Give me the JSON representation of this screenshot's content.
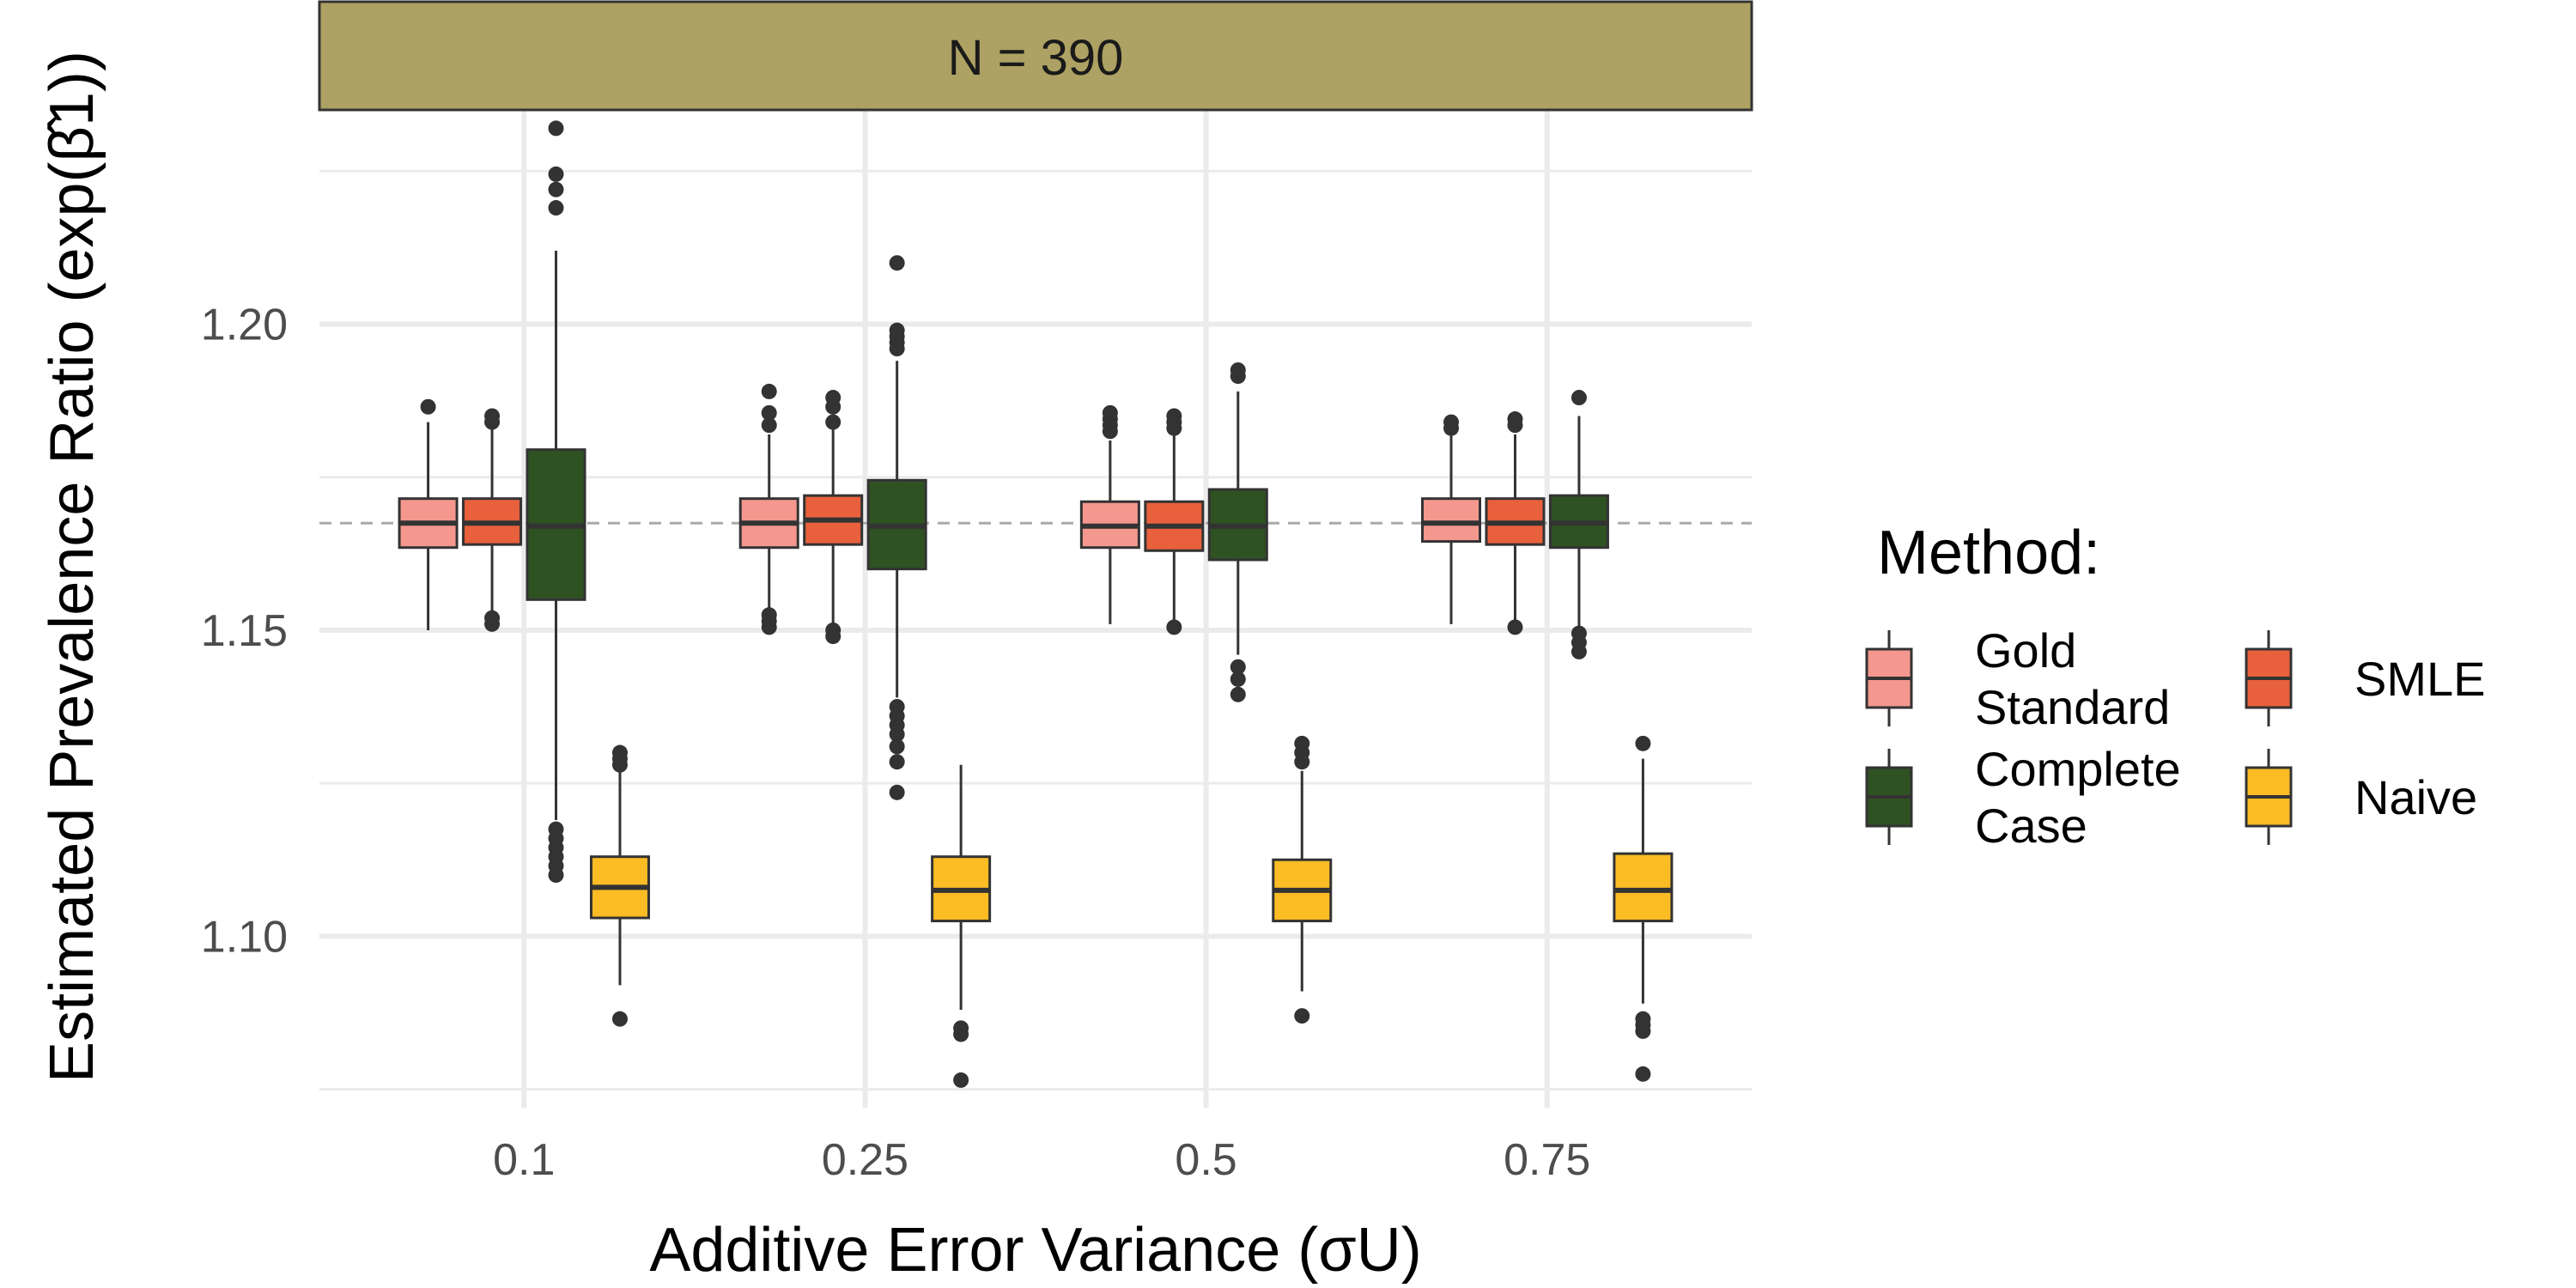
{
  "chart_data": {
    "type": "boxplot",
    "panel": "N = 390",
    "xlabel": "Additive Error Variance (σU)",
    "ylabel": "Estimated Prevalence Ratio (exp(β̂1))",
    "categories": [
      "0.1",
      "0.25",
      "0.5",
      "0.75"
    ],
    "ylim": [
      1.072,
      1.235
    ],
    "yticks": [
      1.1,
      1.15,
      1.2
    ],
    "ytick_labels": [
      "1.10",
      "1.15",
      "1.20"
    ],
    "reference_line": 1.1675,
    "legend_title": "Method:",
    "colors": {
      "panel_strip": "#ADA263",
      "grid": "#EBEBEB",
      "box_border": "#333333",
      "ref_line": "#AAAAAA"
    },
    "series": [
      {
        "name": "Gold Standard",
        "label_lines": [
          "Gold",
          "Standard"
        ],
        "color": "#F4978E",
        "boxes": [
          {
            "lw": 1.15,
            "q1": 1.1635,
            "med": 1.1675,
            "q3": 1.1715,
            "uw": 1.184,
            "outliers": [
              1.1865
            ]
          },
          {
            "lw": 1.153,
            "q1": 1.1635,
            "med": 1.1675,
            "q3": 1.1715,
            "uw": 1.182,
            "outliers": [
              1.1505,
              1.1515,
              1.1525,
              1.1835,
              1.1855,
              1.189
            ]
          },
          {
            "lw": 1.151,
            "q1": 1.1635,
            "med": 1.167,
            "q3": 1.171,
            "uw": 1.181,
            "outliers": [
              1.1825,
              1.1835,
              1.1845,
              1.1855
            ]
          },
          {
            "lw": 1.151,
            "q1": 1.1645,
            "med": 1.1675,
            "q3": 1.1715,
            "uw": 1.182,
            "outliers": [
              1.183,
              1.184
            ]
          }
        ]
      },
      {
        "name": "SMLE",
        "label_lines": [
          "SMLE"
        ],
        "color": "#E8603C",
        "boxes": [
          {
            "lw": 1.152,
            "q1": 1.164,
            "med": 1.1675,
            "q3": 1.1715,
            "uw": 1.183,
            "outliers": [
              1.151,
              1.152,
              1.184,
              1.185
            ]
          },
          {
            "lw": 1.151,
            "q1": 1.164,
            "med": 1.168,
            "q3": 1.172,
            "uw": 1.183,
            "outliers": [
              1.149,
              1.15,
              1.184,
              1.1865,
              1.188
            ]
          },
          {
            "lw": 1.151,
            "q1": 1.163,
            "med": 1.167,
            "q3": 1.171,
            "uw": 1.182,
            "outliers": [
              1.1505,
              1.183,
              1.184,
              1.185
            ]
          },
          {
            "lw": 1.151,
            "q1": 1.164,
            "med": 1.1675,
            "q3": 1.1715,
            "uw": 1.182,
            "outliers": [
              1.1505,
              1.1835,
              1.1845
            ]
          }
        ]
      },
      {
        "name": "Complete Case",
        "label_lines": [
          "Complete",
          "Case"
        ],
        "color": "#2F5223",
        "boxes": [
          {
            "lw": 1.119,
            "q1": 1.155,
            "med": 1.167,
            "q3": 1.1795,
            "uw": 1.212,
            "outliers": [
              1.11,
              1.1115,
              1.113,
              1.1145,
              1.116,
              1.1175,
              1.219,
              1.222,
              1.2245,
              1.232
            ]
          },
          {
            "lw": 1.139,
            "q1": 1.16,
            "med": 1.167,
            "q3": 1.1745,
            "uw": 1.194,
            "outliers": [
              1.1235,
              1.1285,
              1.131,
              1.133,
              1.1345,
              1.136,
              1.1375,
              1.196,
              1.197,
              1.198,
              1.199,
              1.21
            ]
          },
          {
            "lw": 1.146,
            "q1": 1.1615,
            "med": 1.167,
            "q3": 1.173,
            "uw": 1.189,
            "outliers": [
              1.1395,
              1.142,
              1.144,
              1.1915,
              1.1925
            ]
          },
          {
            "lw": 1.15,
            "q1": 1.1635,
            "med": 1.1675,
            "q3": 1.172,
            "uw": 1.185,
            "outliers": [
              1.1465,
              1.148,
              1.1495,
              1.188
            ]
          }
        ]
      },
      {
        "name": "Naive",
        "label_lines": [
          "Naive"
        ],
        "color": "#FBBC24",
        "boxes": [
          {
            "lw": 1.092,
            "q1": 1.103,
            "med": 1.108,
            "q3": 1.113,
            "uw": 1.127,
            "outliers": [
              1.0865,
              1.128,
              1.129,
              1.13
            ]
          },
          {
            "lw": 1.088,
            "q1": 1.1025,
            "med": 1.1075,
            "q3": 1.113,
            "uw": 1.128,
            "outliers": [
              1.0765,
              1.084,
              1.085
            ]
          },
          {
            "lw": 1.091,
            "q1": 1.1025,
            "med": 1.1075,
            "q3": 1.1125,
            "uw": 1.127,
            "outliers": [
              1.087,
              1.1285,
              1.13,
              1.1315
            ]
          },
          {
            "lw": 1.089,
            "q1": 1.1025,
            "med": 1.1075,
            "q3": 1.1135,
            "uw": 1.129,
            "outliers": [
              1.0775,
              1.0845,
              1.0855,
              1.0865,
              1.1315
            ]
          }
        ]
      }
    ]
  }
}
